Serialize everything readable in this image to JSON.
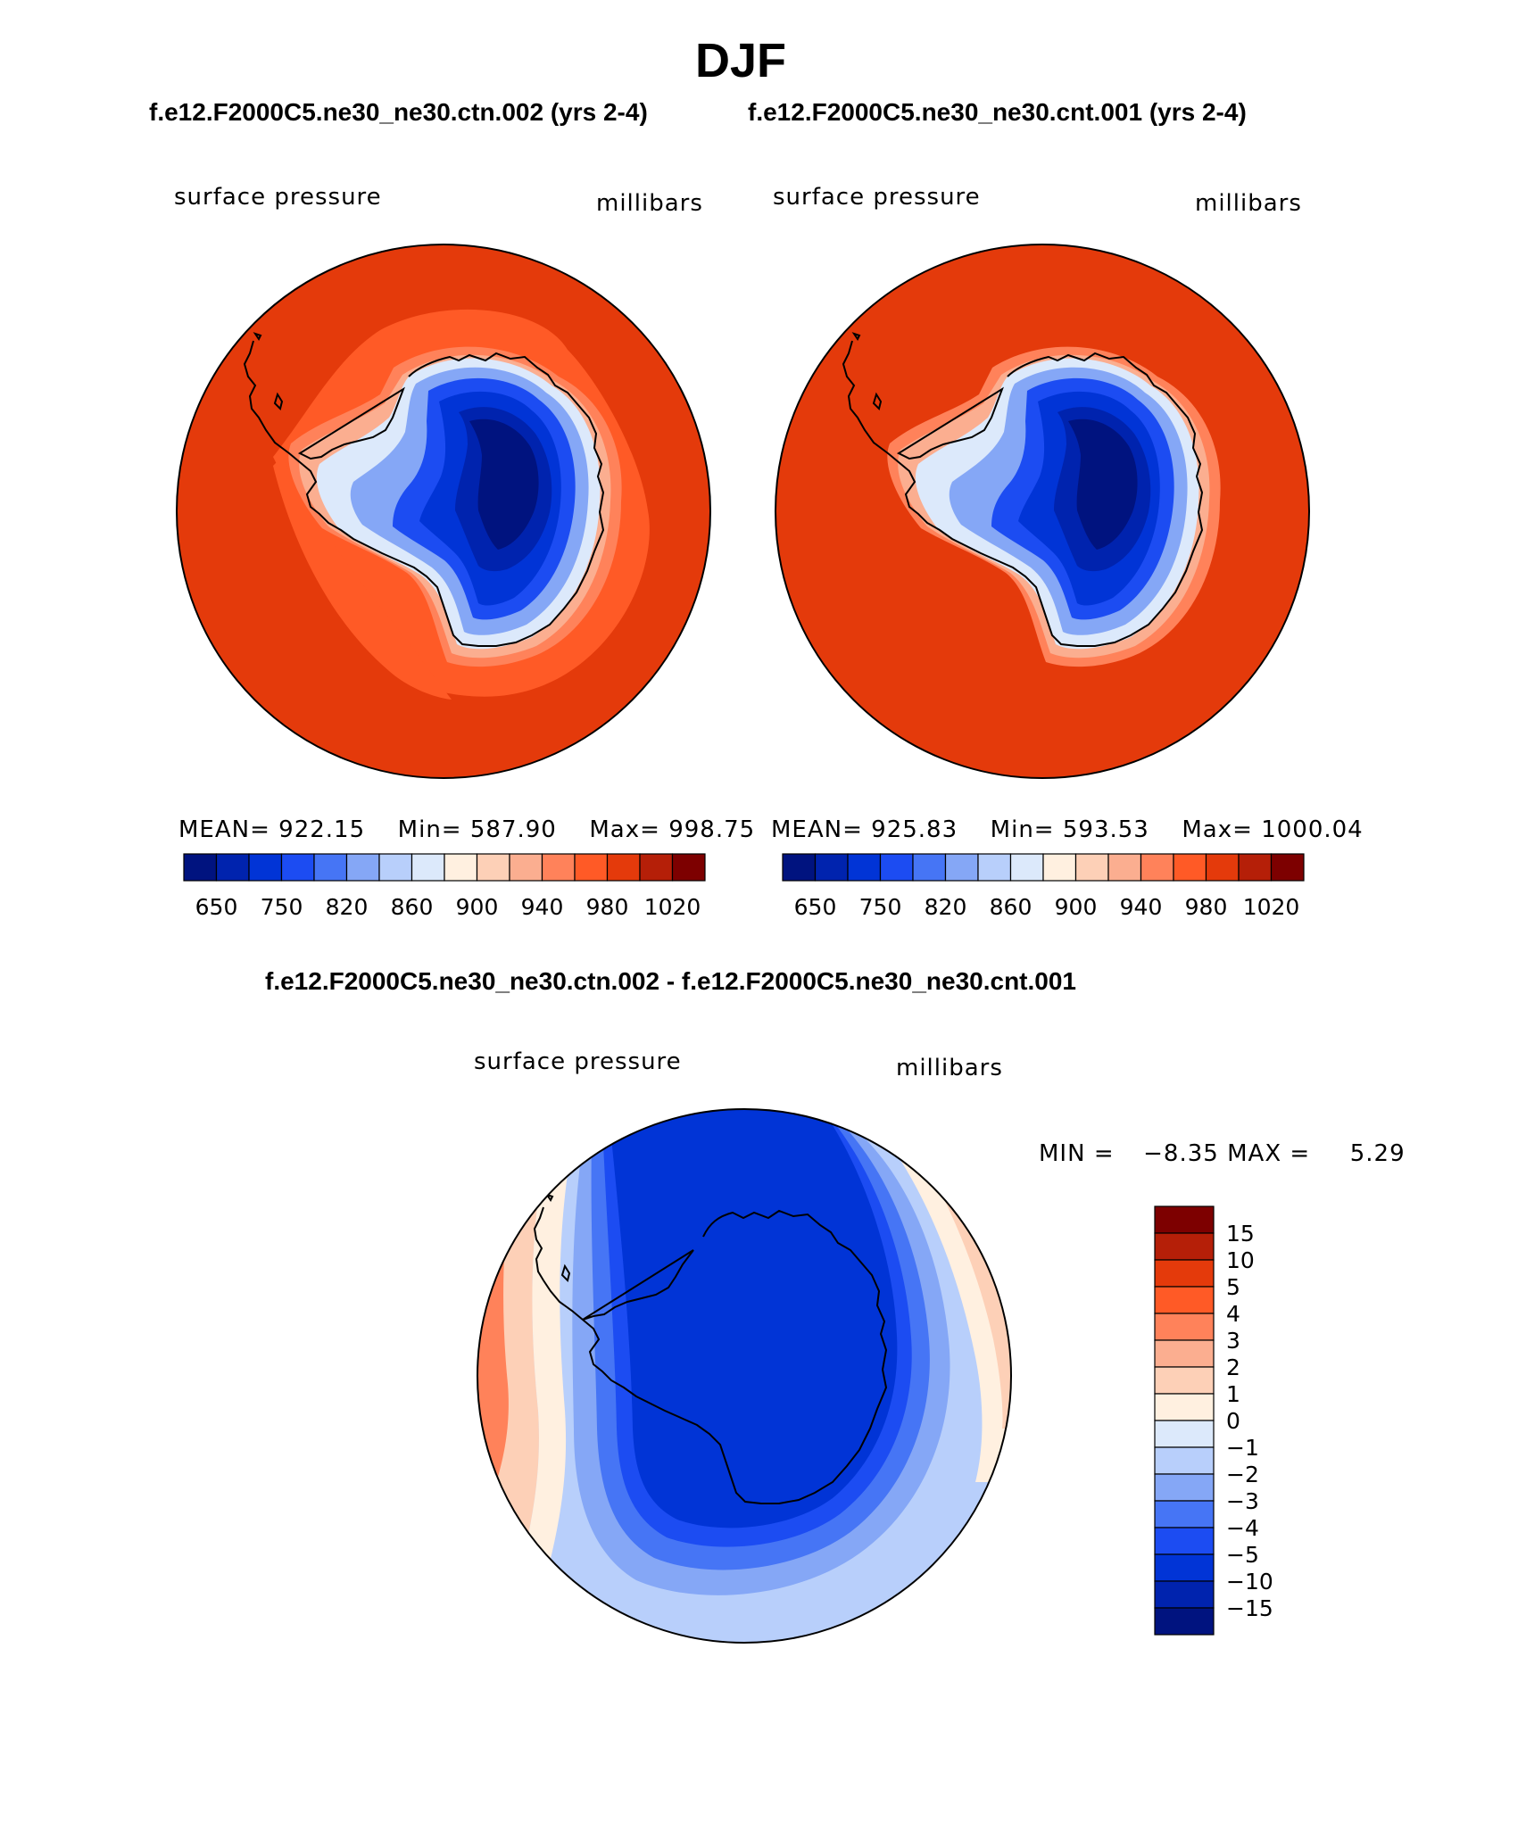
{
  "page_title": "DJF",
  "top_header": {
    "case1": "f.e12.F2000C5.ne30_ne30.ctn.002 (yrs 2-4)",
    "case2": "f.e12.F2000C5.ne30_ne30.cnt.001 (yrs 2-4)"
  },
  "diff_header": "f.e12.F2000C5.ne30_ne30.ctn.002 - f.e12.F2000C5.ne30_ne30.cnt.001",
  "colors": {
    "ocean_high": "#e43a0b",
    "ocean_mid": "#ff5a26",
    "land_outline": "#000000"
  },
  "chart_data": [
    {
      "type": "heatmap",
      "projection": "south-polar-stereographic",
      "variable": "surface pressure",
      "units": "millibars",
      "stats": {
        "mean_label": "MEAN=",
        "mean": "922.15",
        "min_label": "Min=",
        "min": "587.90",
        "max_label": "Max=",
        "max": "998.75"
      },
      "colorbar": {
        "orientation": "horizontal",
        "tick_labels": [
          "650",
          "750",
          "820",
          "860",
          "900",
          "940",
          "980",
          "1020"
        ],
        "colors": [
          "#00137f",
          "#0023ae",
          "#0134d6",
          "#1c4cf2",
          "#4675f5",
          "#85a7f6",
          "#b8cffb",
          "#dce9fb",
          "#fff0e0",
          "#fdd0b7",
          "#fbae90",
          "#ff825a",
          "#ff5a26",
          "#e43a0b",
          "#b51f08",
          "#7d0000"
        ]
      }
    },
    {
      "type": "heatmap",
      "projection": "south-polar-stereographic",
      "variable": "surface pressure",
      "units": "millibars",
      "stats": {
        "mean_label": "MEAN=",
        "mean": "925.83",
        "min_label": "Min=",
        "min": "593.53",
        "max_label": "Max=",
        "max": "1000.04"
      },
      "colorbar": {
        "orientation": "horizontal",
        "tick_labels": [
          "650",
          "750",
          "820",
          "860",
          "900",
          "940",
          "980",
          "1020"
        ],
        "colors": [
          "#00137f",
          "#0023ae",
          "#0134d6",
          "#1c4cf2",
          "#4675f5",
          "#85a7f6",
          "#b8cffb",
          "#dce9fb",
          "#fff0e0",
          "#fdd0b7",
          "#fbae90",
          "#ff825a",
          "#ff5a26",
          "#e43a0b",
          "#b51f08",
          "#7d0000"
        ]
      }
    },
    {
      "type": "heatmap",
      "projection": "south-polar-stereographic",
      "variable": "surface pressure",
      "units": "millibars",
      "min_label": "MIN =",
      "min": "−8.35",
      "max_label": "MAX =",
      "max": "5.29",
      "colorbar": {
        "orientation": "vertical",
        "tick_labels": [
          "15",
          "10",
          "5",
          "4",
          "3",
          "2",
          "1",
          "0",
          "−1",
          "−2",
          "−3",
          "−4",
          "−5",
          "−10",
          "−15"
        ],
        "colors": [
          "#7d0000",
          "#b51f08",
          "#e43a0b",
          "#ff5a26",
          "#ff825a",
          "#fbae90",
          "#fdd0b7",
          "#fff0e0",
          "#dce9fb",
          "#b8cffb",
          "#85a7f6",
          "#4675f5",
          "#1c4cf2",
          "#0134d6",
          "#0023ae",
          "#00137f"
        ]
      }
    }
  ]
}
